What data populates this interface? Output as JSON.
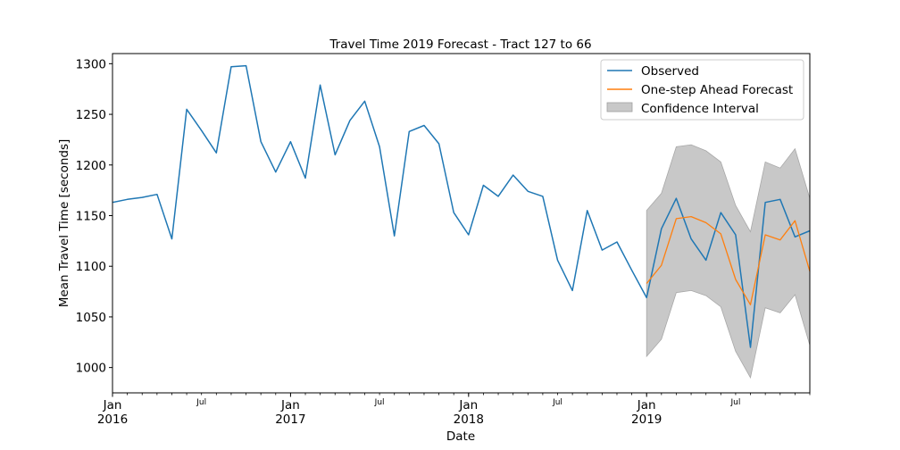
{
  "chart_data": {
    "type": "line",
    "title": "Travel Time 2019 Forecast - Tract 127 to 66",
    "xlabel": "Date",
    "ylabel": "Mean Travel Time [seconds]",
    "ylim": [
      975,
      1310
    ],
    "yticks": [
      1000,
      1050,
      1100,
      1150,
      1200,
      1250,
      1300
    ],
    "xlim": [
      "2016-01",
      "2019-12"
    ],
    "x_major_ticks": [
      {
        "x": "2016-01",
        "label": "Jan",
        "sub": "2016"
      },
      {
        "x": "2017-01",
        "label": "Jan",
        "sub": "2017"
      },
      {
        "x": "2018-01",
        "label": "Jan",
        "sub": "2018"
      },
      {
        "x": "2019-01",
        "label": "Jan",
        "sub": "2019"
      }
    ],
    "x_minor_ticks": [
      {
        "x": "2016-07",
        "label": "Jul"
      },
      {
        "x": "2017-07",
        "label": "Jul"
      },
      {
        "x": "2018-07",
        "label": "Jul"
      },
      {
        "x": "2019-07",
        "label": "Jul"
      }
    ],
    "grid": false,
    "legend_position": "top-right",
    "series": [
      {
        "name": "Observed",
        "color": "#1f77b4",
        "x": [
          "2016-01",
          "2016-02",
          "2016-03",
          "2016-04",
          "2016-05",
          "2016-06",
          "2016-07",
          "2016-08",
          "2016-09",
          "2016-10",
          "2016-11",
          "2016-12",
          "2017-01",
          "2017-02",
          "2017-03",
          "2017-04",
          "2017-05",
          "2017-06",
          "2017-07",
          "2017-08",
          "2017-09",
          "2017-10",
          "2017-11",
          "2017-12",
          "2018-01",
          "2018-02",
          "2018-03",
          "2018-04",
          "2018-05",
          "2018-06",
          "2018-07",
          "2018-08",
          "2018-09",
          "2018-10",
          "2018-11",
          "2018-12",
          "2019-01",
          "2019-02",
          "2019-03",
          "2019-04",
          "2019-05",
          "2019-06",
          "2019-07",
          "2019-08",
          "2019-09",
          "2019-10",
          "2019-11",
          "2019-12"
        ],
        "values": [
          1163,
          1166,
          1168,
          1171,
          1127,
          1255,
          1234,
          1212,
          1297,
          1298,
          1223,
          1193,
          1223,
          1187,
          1279,
          1210,
          1244,
          1263,
          1218,
          1130,
          1233,
          1239,
          1221,
          1153,
          1131,
          1180,
          1169,
          1190,
          1174,
          1169,
          1106,
          1076,
          1155,
          1116,
          1124,
          1096,
          1069,
          1137,
          1167,
          1127,
          1106,
          1153,
          1131,
          1020,
          1163,
          1166,
          1129,
          1135
        ]
      },
      {
        "name": "One-step Ahead Forecast",
        "color": "#ff7f0e",
        "x": [
          "2019-01",
          "2019-02",
          "2019-03",
          "2019-04",
          "2019-05",
          "2019-06",
          "2019-07",
          "2019-08",
          "2019-09",
          "2019-10",
          "2019-11",
          "2019-12"
        ],
        "values": [
          1083,
          1101,
          1147,
          1149,
          1143,
          1132,
          1087,
          1062,
          1131,
          1126,
          1145,
          1095
        ]
      }
    ],
    "confidence_interval": {
      "name": "Confidence Interval",
      "color": "#c8c8c8",
      "x": [
        "2019-01",
        "2019-02",
        "2019-03",
        "2019-04",
        "2019-05",
        "2019-06",
        "2019-07",
        "2019-08",
        "2019-09",
        "2019-10",
        "2019-11",
        "2019-12"
      ],
      "lower": [
        1011,
        1028,
        1074,
        1076,
        1071,
        1060,
        1016,
        990,
        1059,
        1054,
        1072,
        1022
      ],
      "upper": [
        1155,
        1172,
        1218,
        1220,
        1214,
        1203,
        1160,
        1134,
        1203,
        1197,
        1216,
        1167
      ]
    }
  }
}
